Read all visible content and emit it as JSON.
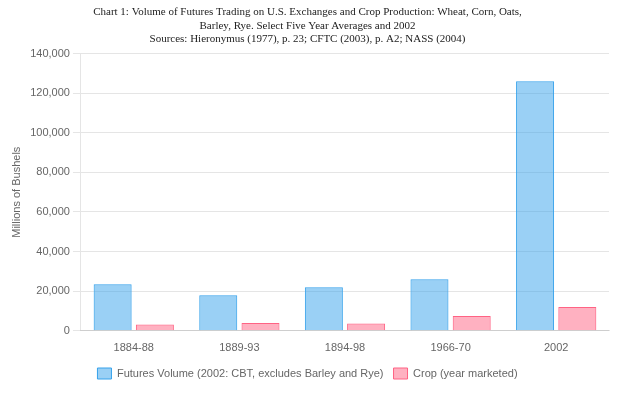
{
  "chart_data": {
    "type": "bar",
    "title": [
      "Chart 1: Volume of Futures Trading on U.S. Exchanges and Crop Production: Wheat, Corn, Oats,",
      "Barley, Rye. Select Five Year Averages and 2002"
    ],
    "subtitle": "Sources: Hieronymus (1977), p. 23; CFTC (2003), p. A2; NASS (2004)",
    "categories": [
      "1884-88",
      "1889-93",
      "1894-98",
      "1966-70",
      "2002"
    ],
    "series": [
      {
        "name": "Futures Volume (2002: CBT, excludes Barley and Rye)",
        "values": [
          23500,
          18000,
          22000,
          26000,
          126000
        ]
      },
      {
        "name": "Crop (year marketed)",
        "values": [
          3200,
          3900,
          3700,
          7500,
          12000
        ]
      }
    ],
    "y_label": "Millions of Bushels",
    "ylim": [
      0,
      140000
    ],
    "yticks": [
      0,
      {
        "value": 20000,
        "label": "20,000"
      },
      {
        "value": 40000,
        "label": "40,000"
      },
      {
        "value": 60000,
        "label": "60,000"
      },
      {
        "value": 80000,
        "label": "80,000"
      },
      {
        "value": 100000,
        "label": "100,000"
      },
      {
        "value": 120000,
        "label": "120,000"
      },
      {
        "value": 140000,
        "label": "140,000"
      }
    ],
    "grid": true,
    "legend": "bottom"
  }
}
